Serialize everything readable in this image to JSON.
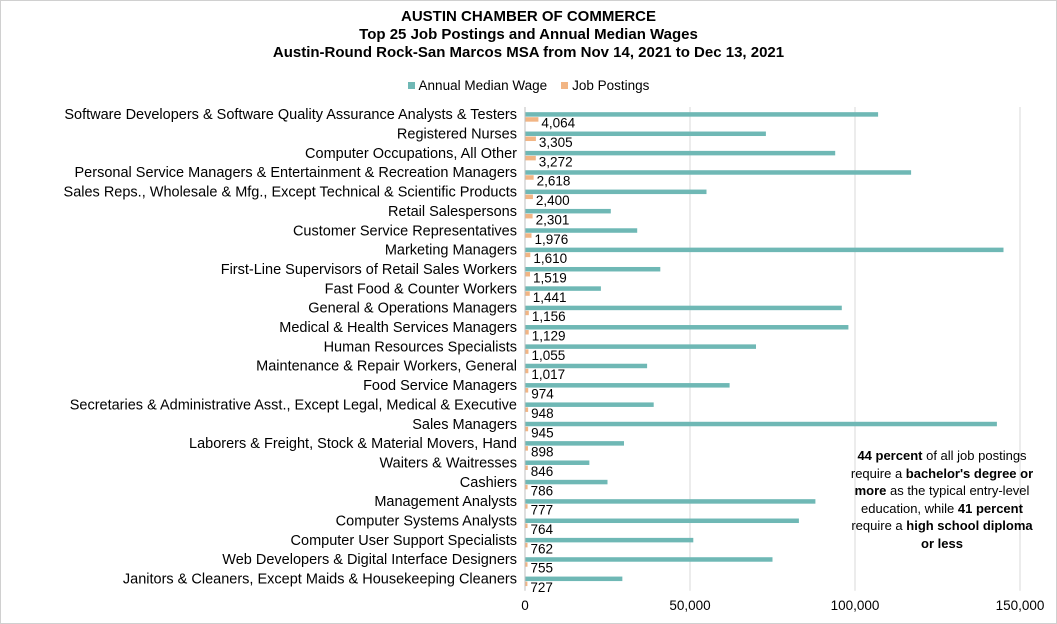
{
  "header": {
    "org": "AUSTIN CHAMBER OF COMMERCE",
    "title": "Top 25 Job Postings and Annual Median Wages",
    "subtitle": "Austin-Round Rock-San Marcos MSA from Nov 14, 2021 to Dec 13, 2021"
  },
  "legend": {
    "wage_label": "Annual Median Wage",
    "postings_label": "Job Postings"
  },
  "colors": {
    "wage": "#6fb8b5",
    "postings": "#f2b584",
    "grid": "#d9d9d9"
  },
  "note": {
    "p1_bold": "44 percent",
    "p1_text": " of all job postings require a ",
    "p2_bold": "bachelor's degree or more",
    "p2_text": " as the typical entry-level education, while ",
    "p3_bold": "41 percent",
    "p3_text": " require a ",
    "p4_bold": "high school diploma or less"
  },
  "chart_data": {
    "type": "bar",
    "orientation": "horizontal",
    "categories": [
      "Software Developers & Software Quality Assurance Analysts & Testers",
      "Registered Nurses",
      "Computer Occupations, All Other",
      "Personal Service Managers & Entertainment & Recreation Managers",
      "Sales Reps., Wholesale & Mfg., Except Technical & Scientific Products",
      "Retail Salespersons",
      "Customer Service Representatives",
      "Marketing Managers",
      "First-Line Supervisors of Retail Sales Workers",
      "Fast Food & Counter Workers",
      "General & Operations Managers",
      "Medical & Health Services Managers",
      "Human Resources Specialists",
      "Maintenance & Repair Workers, General",
      "Food Service Managers",
      "Secretaries & Administrative Asst., Except Legal, Medical & Executive",
      "Sales Managers",
      "Laborers & Freight, Stock & Material Movers, Hand",
      "Waiters & Waitresses",
      "Cashiers",
      "Management Analysts",
      "Computer Systems Analysts",
      "Computer User Support Specialists",
      "Web Developers & Digital Interface Designers",
      "Janitors & Cleaners, Except Maids & Housekeeping Cleaners"
    ],
    "series": [
      {
        "name": "Annual Median Wage",
        "values": [
          107000,
          73000,
          94000,
          117000,
          55000,
          26000,
          34000,
          145000,
          41000,
          23000,
          96000,
          98000,
          70000,
          37000,
          62000,
          39000,
          143000,
          30000,
          19500,
          25000,
          88000,
          83000,
          51000,
          75000,
          29500
        ]
      },
      {
        "name": "Job Postings",
        "values": [
          4064,
          3305,
          3272,
          2618,
          2400,
          2301,
          1976,
          1610,
          1519,
          1441,
          1156,
          1129,
          1055,
          1017,
          974,
          948,
          945,
          898,
          846,
          786,
          777,
          764,
          762,
          755,
          727
        ],
        "labels": [
          "4,064",
          "3,305",
          "3,272",
          "2,618",
          "2,400",
          "2,301",
          "1,976",
          "1,610",
          "1,519",
          "1,441",
          "1,156",
          "1,129",
          "1,055",
          "1,017",
          "974",
          "948",
          "945",
          "898",
          "846",
          "786",
          "777",
          "764",
          "762",
          "755",
          "727"
        ]
      }
    ],
    "xlim": [
      0,
      150000
    ],
    "xticks": [
      0,
      50000,
      100000,
      150000
    ],
    "xtick_labels": [
      "0",
      "50,000",
      "100,000",
      "150,000"
    ],
    "grid": true,
    "legend_position": "top"
  }
}
